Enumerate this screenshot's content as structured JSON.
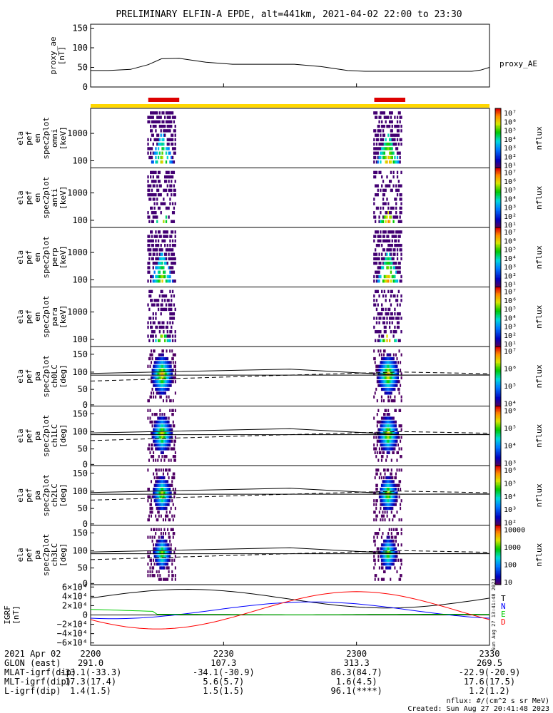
{
  "title": "PRELIMINARY ELFIN-A EPDE, alt=441km, 2021-04-02 22:00 to 23:30",
  "legend_right": "proxy_AE",
  "time_ticks": [
    "2200",
    "2230",
    "2300",
    "2330"
  ],
  "colorbar_label": "nflux",
  "panels": [
    {
      "ylabel": [
        "ela",
        "pef",
        "en",
        "spec2plot",
        "omni",
        "[keV]"
      ],
      "kind": "energy",
      "yticks": [
        "1000",
        "100"
      ],
      "cticks": [
        "10⁷",
        "10⁶",
        "10⁵",
        "10⁴",
        "10³",
        "10²",
        "10¹"
      ]
    },
    {
      "ylabel": [
        "ela",
        "pef",
        "en",
        "spec2plot",
        "anti",
        "[keV]"
      ],
      "kind": "energy",
      "yticks": [
        "1000",
        "100"
      ],
      "cticks": [
        "10⁷",
        "10⁶",
        "10⁵",
        "10⁴",
        "10³",
        "10²",
        "10¹"
      ]
    },
    {
      "ylabel": [
        "ela",
        "pef",
        "en",
        "spec2plot",
        "perp",
        "[keV]"
      ],
      "kind": "energy",
      "yticks": [
        "1000",
        "100"
      ],
      "cticks": [
        "10⁷",
        "10⁶",
        "10⁵",
        "10⁴",
        "10³",
        "10²",
        "10¹"
      ]
    },
    {
      "ylabel": [
        "ela",
        "pef",
        "en",
        "spec2plot",
        "para",
        "[keV]"
      ],
      "kind": "energy",
      "yticks": [
        "1000",
        "100"
      ],
      "cticks": [
        "10⁷",
        "10⁶",
        "10⁵",
        "10⁴",
        "10³",
        "10²",
        "10¹"
      ]
    },
    {
      "ylabel": [
        "ela",
        "pef",
        "pa",
        "spec2plot",
        "ch0LC",
        "[deg]"
      ],
      "kind": "pa",
      "yticks": [
        "150",
        "100",
        "50",
        "0"
      ],
      "cticks": [
        "10⁷",
        "10⁶",
        "10⁵",
        "10⁴"
      ]
    },
    {
      "ylabel": [
        "ela",
        "pef",
        "pa",
        "spec2plot",
        "ch1LC",
        "[deg]"
      ],
      "kind": "pa",
      "yticks": [
        "150",
        "100",
        "50",
        "0"
      ],
      "cticks": [
        "10⁶",
        "10⁵",
        "10⁴",
        "10³"
      ]
    },
    {
      "ylabel": [
        "ela",
        "pef",
        "pa",
        "spec2plot",
        "ch2LC",
        "[deg]"
      ],
      "kind": "pa",
      "yticks": [
        "150",
        "100",
        "50",
        "0"
      ],
      "cticks": [
        "10⁶",
        "10⁵",
        "10⁴",
        "10³",
        "10²"
      ]
    },
    {
      "ylabel": [
        "ela",
        "pef",
        "pa",
        "spec2plot",
        "ch3LC",
        "[deg]"
      ],
      "kind": "pa",
      "yticks": [
        "150",
        "100",
        "50",
        "0"
      ],
      "cticks": [
        "10000",
        "1000",
        "100",
        "10"
      ]
    }
  ],
  "ae_panel": {
    "ylabel": [
      "proxy_ae",
      "[nT]"
    ],
    "yticks": [
      "150",
      "100",
      "50",
      "0"
    ]
  },
  "igrf_panel": {
    "ylabel": [
      "IGRF",
      "[nT]"
    ],
    "yticks": [
      "6×10⁴",
      "4×10⁴",
      "2×10⁴",
      "0",
      "−2×10⁴",
      "−4×10⁴",
      "−6×10⁴"
    ],
    "components": [
      {
        "label": "T",
        "color": "#000000"
      },
      {
        "label": "N",
        "color": "#0000ff"
      },
      {
        "label": "E",
        "color": "#00cc00"
      },
      {
        "label": "D",
        "color": "#ff0000"
      }
    ],
    "stamp": "Sun Aug 27 13:41:48 2023"
  },
  "footer": {
    "rows": [
      {
        "label": "2021 Apr 02",
        "values": [
          "2200",
          "2230",
          "2300",
          "2330"
        ]
      },
      {
        "label": "GLON (east)",
        "values": [
          "291.0",
          "107.3",
          "313.3",
          "269.5"
        ]
      },
      {
        "label": "MLAT-igrf(dip)",
        "values": [
          "-33.1(-33.3)",
          "-34.1(-30.9)",
          "86.3(84.7)",
          "-22.9(-20.9)"
        ]
      },
      {
        "label": "MLT-igrf(dip)",
        "values": [
          "17.3(17.4)",
          "5.6(5.7)",
          "1.6(4.5)",
          "17.6(17.5)"
        ]
      },
      {
        "label": "L-igrf(dip)",
        "values": [
          "1.4(1.5)",
          "1.5(1.5)",
          "96.1(****)",
          "1.2(1.2)"
        ]
      }
    ],
    "units_note": "nflux: #/(cm^2 s sr MeV)",
    "created": "Created: Sun Aug 27 20:41:48 2023"
  },
  "chart_data": {
    "type": "heatmap",
    "title": "PRELIMINARY ELFIN-A EPDE, alt=441km, 2021-04-02 22:00 to 23:30",
    "x_range": [
      "22:00",
      "23:30"
    ],
    "science_zones_hhmm": [
      [
        "22:13",
        "22:20"
      ],
      [
        "23:04",
        "23:11"
      ]
    ],
    "proxy_ae": {
      "ylim": [
        0,
        150
      ],
      "x_hhmm": [
        "22:00",
        "22:04",
        "22:09",
        "22:13",
        "22:16",
        "22:20",
        "22:26",
        "22:32",
        "22:40",
        "22:46",
        "22:52",
        "22:58",
        "23:02",
        "23:10",
        "23:20",
        "23:26",
        "23:28",
        "23:30"
      ],
      "values": [
        42,
        42,
        45,
        57,
        72,
        73,
        63,
        58,
        58,
        58,
        52,
        42,
        40,
        40,
        40,
        40,
        43,
        50
      ]
    },
    "energy_ylim_keV": [
      50,
      7000
    ],
    "pitch_angle_ylim_deg": [
      0,
      180
    ],
    "igrf_ylim_nT": [
      -60000,
      60000
    ]
  }
}
